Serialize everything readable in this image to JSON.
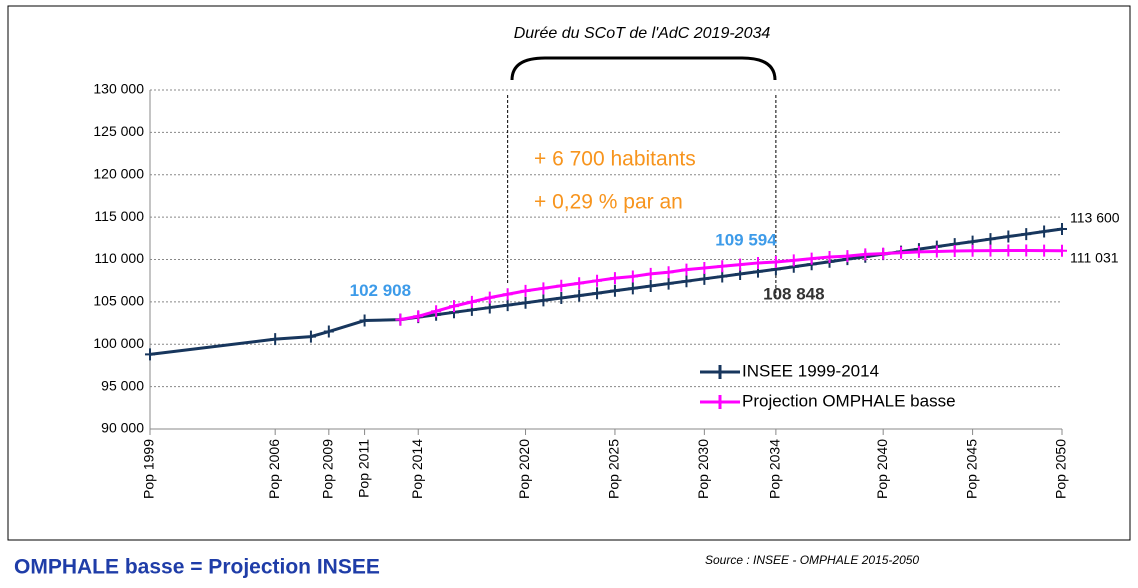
{
  "chart_data": {
    "type": "line",
    "title": "Durée du SCoT de l'AdC 2019-2034",
    "period": [
      2019,
      2034
    ],
    "period_notes": [
      "+ 6 700 habitants",
      "+ 0,29 % par an"
    ],
    "footer_title": "OMPHALE basse = Projection INSEE",
    "source": "Source : INSEE - OMPHALE 2015-2050",
    "xlim": [
      1999,
      2050
    ],
    "xticks": [
      {
        "value": 1999,
        "label": "Pop 1999"
      },
      {
        "value": 2006,
        "label": "Pop 2006"
      },
      {
        "value": 2009,
        "label": "Pop 2009"
      },
      {
        "value": 2011,
        "label": "Pop 2011"
      },
      {
        "value": 2014,
        "label": "Pop 2014"
      },
      {
        "value": 2020,
        "label": "Pop 2020"
      },
      {
        "value": 2025,
        "label": "Pop 2025"
      },
      {
        "value": 2030,
        "label": "Pop 2030"
      },
      {
        "value": 2034,
        "label": "Pop 2034"
      },
      {
        "value": 2040,
        "label": "Pop 2040"
      },
      {
        "value": 2045,
        "label": "Pop 2045"
      },
      {
        "value": 2050,
        "label": "Pop 2050"
      }
    ],
    "ylim": [
      90000,
      130000
    ],
    "yticks": [
      {
        "value": 90000,
        "label": "90 000"
      },
      {
        "value": 95000,
        "label": "95 000"
      },
      {
        "value": 100000,
        "label": "100 000"
      },
      {
        "value": 105000,
        "label": "105 000"
      },
      {
        "value": 110000,
        "label": "110 000"
      },
      {
        "value": 115000,
        "label": "115 000"
      },
      {
        "value": 120000,
        "label": "120 000"
      },
      {
        "value": 125000,
        "label": "125 000"
      },
      {
        "value": 130000,
        "label": "130 000"
      }
    ],
    "grid": true,
    "legend": "lower right",
    "series": [
      {
        "name": "INSEE 1999-2014",
        "color": "#17365d",
        "x": [
          1999,
          2006,
          2008,
          2009,
          2011,
          2013,
          2014,
          2015,
          2016,
          2017,
          2018,
          2019,
          2020,
          2021,
          2022,
          2023,
          2024,
          2025,
          2026,
          2027,
          2028,
          2029,
          2030,
          2031,
          2032,
          2033,
          2034,
          2035,
          2036,
          2037,
          2038,
          2039,
          2040,
          2041,
          2042,
          2043,
          2044,
          2045,
          2046,
          2047,
          2048,
          2049,
          2050
        ],
        "values": [
          98800,
          100600,
          100900,
          101500,
          102800,
          102908,
          103200,
          103480,
          103770,
          104050,
          104330,
          104610,
          104890,
          105180,
          105460,
          105740,
          106020,
          106310,
          106590,
          106870,
          107160,
          107440,
          107720,
          108000,
          108290,
          108570,
          108848,
          109150,
          109440,
          109740,
          110040,
          110330,
          110630,
          110930,
          111220,
          111520,
          111820,
          112110,
          112410,
          112710,
          113000,
          113300,
          113600
        ]
      },
      {
        "name": "Projection OMPHALE basse",
        "color": "#ff00ff",
        "x": [
          2013,
          2014,
          2015,
          2016,
          2017,
          2018,
          2019,
          2020,
          2021,
          2022,
          2023,
          2024,
          2025,
          2026,
          2027,
          2028,
          2029,
          2030,
          2031,
          2032,
          2033,
          2034,
          2035,
          2036,
          2037,
          2038,
          2039,
          2040,
          2041,
          2042,
          2043,
          2044,
          2045,
          2046,
          2047,
          2048,
          2049,
          2050
        ],
        "values": [
          102908,
          103300,
          103900,
          104500,
          105000,
          105500,
          105900,
          106300,
          106600,
          106900,
          107200,
          107500,
          107800,
          108000,
          108300,
          108500,
          108800,
          109000,
          109200,
          109400,
          109594,
          109700,
          109900,
          110100,
          110300,
          110400,
          110600,
          110700,
          110800,
          110900,
          110950,
          111000,
          111030,
          111050,
          111060,
          111060,
          111050,
          111031
        ]
      }
    ],
    "annotations": [
      {
        "text": "102 908",
        "x": 2013,
        "value": 102908,
        "color": "#3d9be9"
      },
      {
        "text": "109 594",
        "x": 2033,
        "value": 109594,
        "color": "#3d9be9"
      },
      {
        "text": "108 848",
        "x": 2034,
        "value": 108848,
        "color": "#333333"
      },
      {
        "text": "113 600",
        "x": 2050,
        "value": 113600,
        "color": "#000000"
      },
      {
        "text": "111 031",
        "x": 2050,
        "value": 111031,
        "color": "#000000"
      }
    ]
  }
}
